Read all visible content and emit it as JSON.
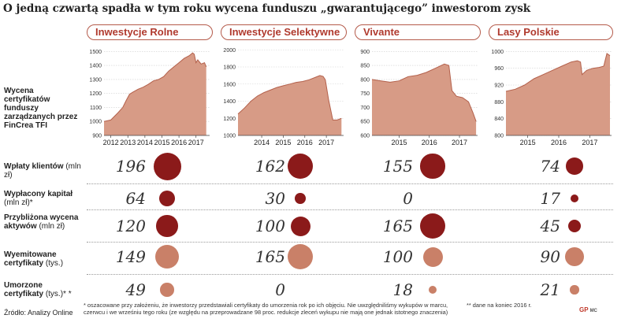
{
  "title": "O jedną czwartą spadła w tym roku wycena funduszu „gwarantującego” inwestorom zysk",
  "row_labels": {
    "valuation": "Wycena certyfikatów funduszy zarządzanych przez FinCrea TFI",
    "deposits": "Wpłaty klientów",
    "deposits_unit": "(mln zł)",
    "paid_out": "Wypłacony kapitał",
    "paid_out_unit": "(mln zł)*",
    "assets": "Przybliżona wycena aktywów",
    "assets_unit": "(mln zł)",
    "issued": "Wyemitowane certyfikaty",
    "issued_unit": "(tys.)",
    "redeemed": "Umorzone certyfikaty",
    "redeemed_unit": "(tys.)* *"
  },
  "footnotes": {
    "source": "Źródło: Analizy Online",
    "note1": "* oszacowane przy założeniu, że inwestorzy przedstawiali certyfikaty do umorzenia rok po ich objęciu. Nie uwzględniliśmy wykupów w marcu, czerwcu i we wrześniu tego roku (ze względu na przeprowadzane 98 proc. redukcje zleceń wykupu nie mają one jednak istotnego znaczenia)",
    "note2": "** dane na koniec 2016 r.",
    "logo": "GP",
    "logo_small": "MC"
  },
  "colors": {
    "area": "#d79b86",
    "area_line": "#b3604b",
    "dark_circle": "#8b1a1a",
    "light_circle": "#c98068",
    "tab_border": "#b45a4a",
    "tab_text": "#b03a2e"
  },
  "chart_data": [
    {
      "type": "area",
      "fund": "Inwestycje Rolne",
      "yticks": [
        900,
        1000,
        1100,
        1200,
        1300,
        1400,
        1500
      ],
      "ylim": [
        900,
        1530
      ],
      "xlim": [
        2011.6,
        2017.8
      ],
      "xticks": [
        2012,
        2013,
        2014,
        2015,
        2016,
        2017
      ],
      "x": [
        2011.6,
        2012.0,
        2012.4,
        2012.7,
        2012.9,
        2013.1,
        2013.3,
        2013.6,
        2013.9,
        2014.2,
        2014.5,
        2014.8,
        2015.1,
        2015.4,
        2015.7,
        2016.0,
        2016.3,
        2016.6,
        2016.8,
        2016.9,
        2017.0,
        2017.1,
        2017.3,
        2017.5,
        2017.6
      ],
      "y": [
        1000,
        1010,
        1060,
        1100,
        1150,
        1195,
        1210,
        1230,
        1245,
        1265,
        1290,
        1300,
        1320,
        1360,
        1390,
        1420,
        1450,
        1470,
        1490,
        1480,
        1420,
        1440,
        1410,
        1420,
        1390
      ]
    },
    {
      "type": "area",
      "fund": "Inwestycje Selektywne",
      "yticks": [
        1000,
        1200,
        1400,
        1600,
        1800,
        2000
      ],
      "ylim": [
        1000,
        2030
      ],
      "xlim": [
        2012.9,
        2017.8
      ],
      "xticks": [
        2014,
        2015,
        2016,
        2017
      ],
      "x": [
        2012.9,
        2013.2,
        2013.5,
        2013.8,
        2014.1,
        2014.4,
        2014.7,
        2015.0,
        2015.3,
        2015.6,
        2015.9,
        2016.2,
        2016.5,
        2016.7,
        2016.85,
        2016.95,
        2017.1,
        2017.3,
        2017.5,
        2017.7
      ],
      "y": [
        1250,
        1320,
        1400,
        1460,
        1500,
        1530,
        1560,
        1580,
        1600,
        1620,
        1630,
        1650,
        1680,
        1700,
        1690,
        1650,
        1420,
        1180,
        1180,
        1200
      ]
    },
    {
      "type": "area",
      "fund": "Vivante",
      "yticks": [
        600,
        650,
        700,
        750,
        800,
        850,
        900
      ],
      "ylim": [
        600,
        915
      ],
      "xlim": [
        2014.1,
        2017.6
      ],
      "xticks": [
        2015,
        2016,
        2017
      ],
      "x": [
        2014.1,
        2014.4,
        2014.7,
        2015.0,
        2015.3,
        2015.6,
        2015.9,
        2016.2,
        2016.5,
        2016.65,
        2016.75,
        2016.9,
        2017.1,
        2017.3,
        2017.45,
        2017.55
      ],
      "y": [
        800,
        795,
        790,
        795,
        810,
        815,
        825,
        840,
        855,
        850,
        760,
        740,
        735,
        720,
        680,
        650
      ]
    },
    {
      "type": "area",
      "fund": "Lasy Polskie",
      "yticks": [
        800,
        840,
        880,
        920,
        960,
        1000
      ],
      "ylim": [
        800,
        1010
      ],
      "xlim": [
        2014.3,
        2017.7
      ],
      "xticks": [
        2015,
        2016,
        2017
      ],
      "x": [
        2014.3,
        2014.6,
        2014.9,
        2015.2,
        2015.5,
        2015.8,
        2016.1,
        2016.4,
        2016.6,
        2016.7,
        2016.75,
        2016.9,
        2017.1,
        2017.3,
        2017.45,
        2017.55,
        2017.65
      ],
      "y": [
        905,
        910,
        920,
        935,
        945,
        955,
        965,
        975,
        978,
        975,
        945,
        955,
        960,
        962,
        965,
        995,
        990
      ]
    }
  ],
  "table": {
    "funds": [
      "Inwestycje Rolne",
      "Inwestycje Selektywne",
      "Vivante",
      "Lasy Polskie"
    ],
    "rows": [
      {
        "key": "deposits",
        "shade": "dark",
        "values": [
          "196",
          "162",
          "155",
          "74"
        ],
        "numbers": [
          196,
          162,
          155,
          74
        ]
      },
      {
        "key": "paid_out",
        "shade": "dark",
        "values": [
          "64",
          "30",
          "0",
          "17"
        ],
        "numbers": [
          64,
          30,
          0,
          17
        ]
      },
      {
        "key": "assets",
        "shade": "dark",
        "values": [
          "120",
          "100",
          "165",
          "45"
        ],
        "numbers": [
          120,
          100,
          165,
          45
        ]
      },
      {
        "key": "issued",
        "shade": "light",
        "values": [
          "149",
          "165",
          "100",
          "90"
        ],
        "numbers": [
          149,
          165,
          100,
          90
        ]
      },
      {
        "key": "redeemed",
        "shade": "light",
        "values": [
          "49",
          "0",
          "18",
          "21"
        ],
        "numbers": [
          49,
          0,
          18,
          21
        ]
      }
    ]
  }
}
